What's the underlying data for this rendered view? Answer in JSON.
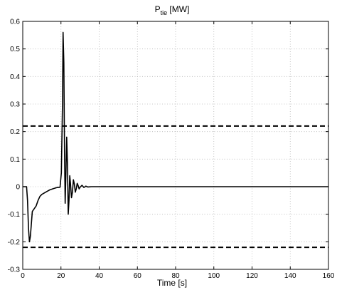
{
  "chart_data": {
    "type": "line",
    "title": "P",
    "title_subscript": "tie",
    "title_suffix": " [MW]",
    "xlabel": "Time [s]",
    "ylabel": "",
    "xlim": [
      0,
      160
    ],
    "ylim": [
      -0.3,
      0.6
    ],
    "xticks": [
      0,
      20,
      40,
      60,
      80,
      100,
      120,
      140,
      160
    ],
    "yticks": [
      -0.3,
      -0.2,
      -0.1,
      0,
      0.1,
      0.2,
      0.3,
      0.4,
      0.5,
      0.6
    ],
    "xtick_labels": [
      "0",
      "20",
      "40",
      "60",
      "80",
      "100",
      "120",
      "140",
      "160"
    ],
    "ytick_labels": [
      "-0.3",
      "-0.2",
      "-0.1",
      "0",
      "0.1",
      "0.2",
      "0.3",
      "0.4",
      "0.5",
      "0.6"
    ],
    "grid": true,
    "legend": false,
    "series": [
      {
        "style": "solid",
        "color": "#000000",
        "x": [
          0,
          2.0,
          2.5,
          3.0,
          3.5,
          4.0,
          5.0,
          6.0,
          7.0,
          8.0,
          9.0,
          10.0,
          12.0,
          14.0,
          16.0,
          18.0,
          19.5,
          20.2,
          20.8,
          21.1,
          21.5,
          21.9,
          22.2,
          22.6,
          23.0,
          23.4,
          23.8,
          24.2,
          24.6,
          25.0,
          25.5,
          26.0,
          26.5,
          27.0,
          27.5,
          28.0,
          28.5,
          29.0,
          29.5,
          30.0,
          31.0,
          32.0,
          33.0,
          34.0,
          36.0,
          160
        ],
        "y": [
          0,
          0,
          -0.05,
          -0.15,
          -0.2,
          -0.18,
          -0.09,
          -0.08,
          -0.07,
          -0.05,
          -0.035,
          -0.028,
          -0.02,
          -0.012,
          -0.007,
          -0.003,
          -0.002,
          0.05,
          0.3,
          0.56,
          0.45,
          0.1,
          -0.06,
          0.05,
          0.18,
          0.08,
          -0.1,
          -0.05,
          0.04,
          0.01,
          -0.04,
          -0.02,
          0.025,
          0.01,
          -0.02,
          -0.008,
          0.012,
          0.004,
          -0.008,
          -0.002,
          0.005,
          -0.003,
          0.002,
          -0.001,
          0,
          0
        ]
      },
      {
        "style": "dashed",
        "color": "#000000",
        "x": [
          0,
          160
        ],
        "y": [
          0.22,
          0.22
        ]
      },
      {
        "style": "dashed",
        "color": "#000000",
        "x": [
          0,
          160
        ],
        "y": [
          -0.22,
          -0.22
        ]
      }
    ]
  }
}
